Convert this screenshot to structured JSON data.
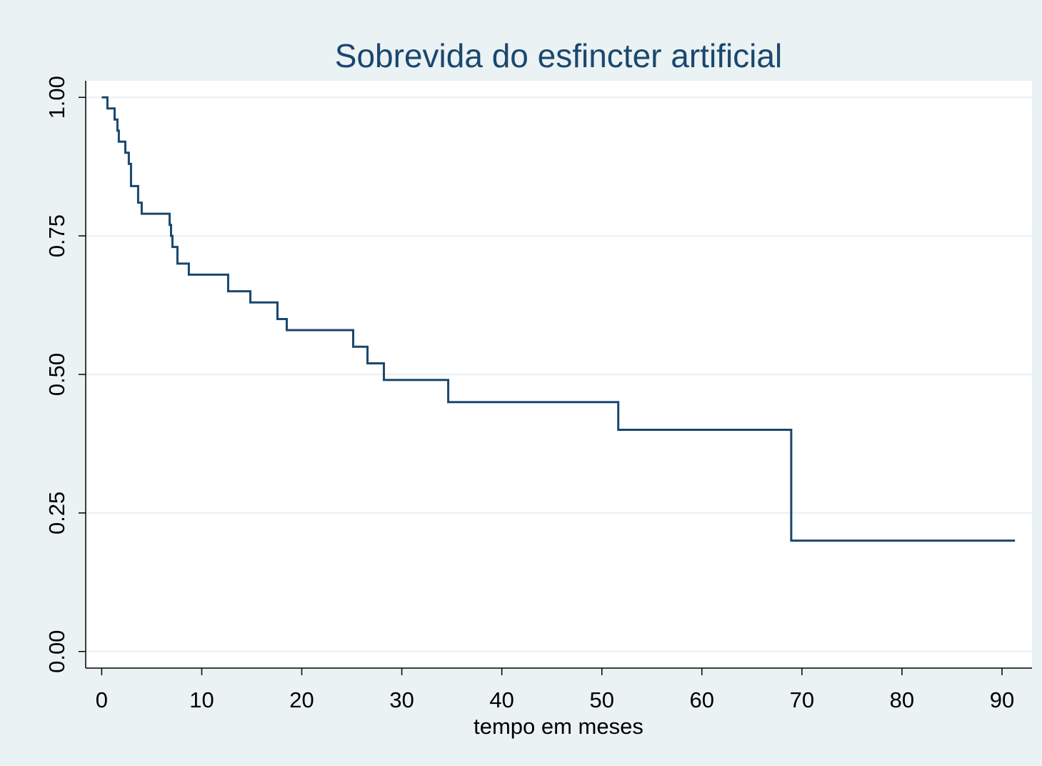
{
  "chart_data": {
    "type": "step",
    "title": "Sobrevida do esfincter artificial",
    "x_label": "tempo em meses",
    "x": [
      0,
      0.57,
      1.29,
      1.57,
      1.71,
      2.36,
      2.71,
      2.93,
      3.64,
      4.0,
      6.79,
      6.93,
      7.07,
      7.57,
      8.71,
      12.64,
      14.86,
      17.57,
      18.5,
      25.14,
      26.57,
      28.21,
      34.64,
      51.64,
      68.93,
      91.3
    ],
    "values": [
      1.0,
      0.98,
      0.96,
      0.94,
      0.92,
      0.9,
      0.88,
      0.84,
      0.81,
      0.79,
      0.77,
      0.75,
      0.73,
      0.7,
      0.68,
      0.65,
      0.63,
      0.6,
      0.58,
      0.55,
      0.52,
      0.49,
      0.45,
      0.4,
      0.2,
      0.2
    ],
    "color": "#1a476f",
    "xlim": [
      -1.6,
      93.0
    ],
    "ylim": [
      -0.03,
      1.03
    ],
    "xticks": [
      0,
      10,
      20,
      30,
      40,
      50,
      60,
      70,
      80,
      90
    ],
    "yticks": [
      {
        "value": 0,
        "label": "0.00"
      },
      {
        "value": 0.25,
        "label": "0.25"
      },
      {
        "value": 0.5,
        "label": "0.50"
      },
      {
        "value": 0.75,
        "label": "0.75"
      },
      {
        "value": 1,
        "label": "1.00"
      }
    ],
    "grid": true
  }
}
